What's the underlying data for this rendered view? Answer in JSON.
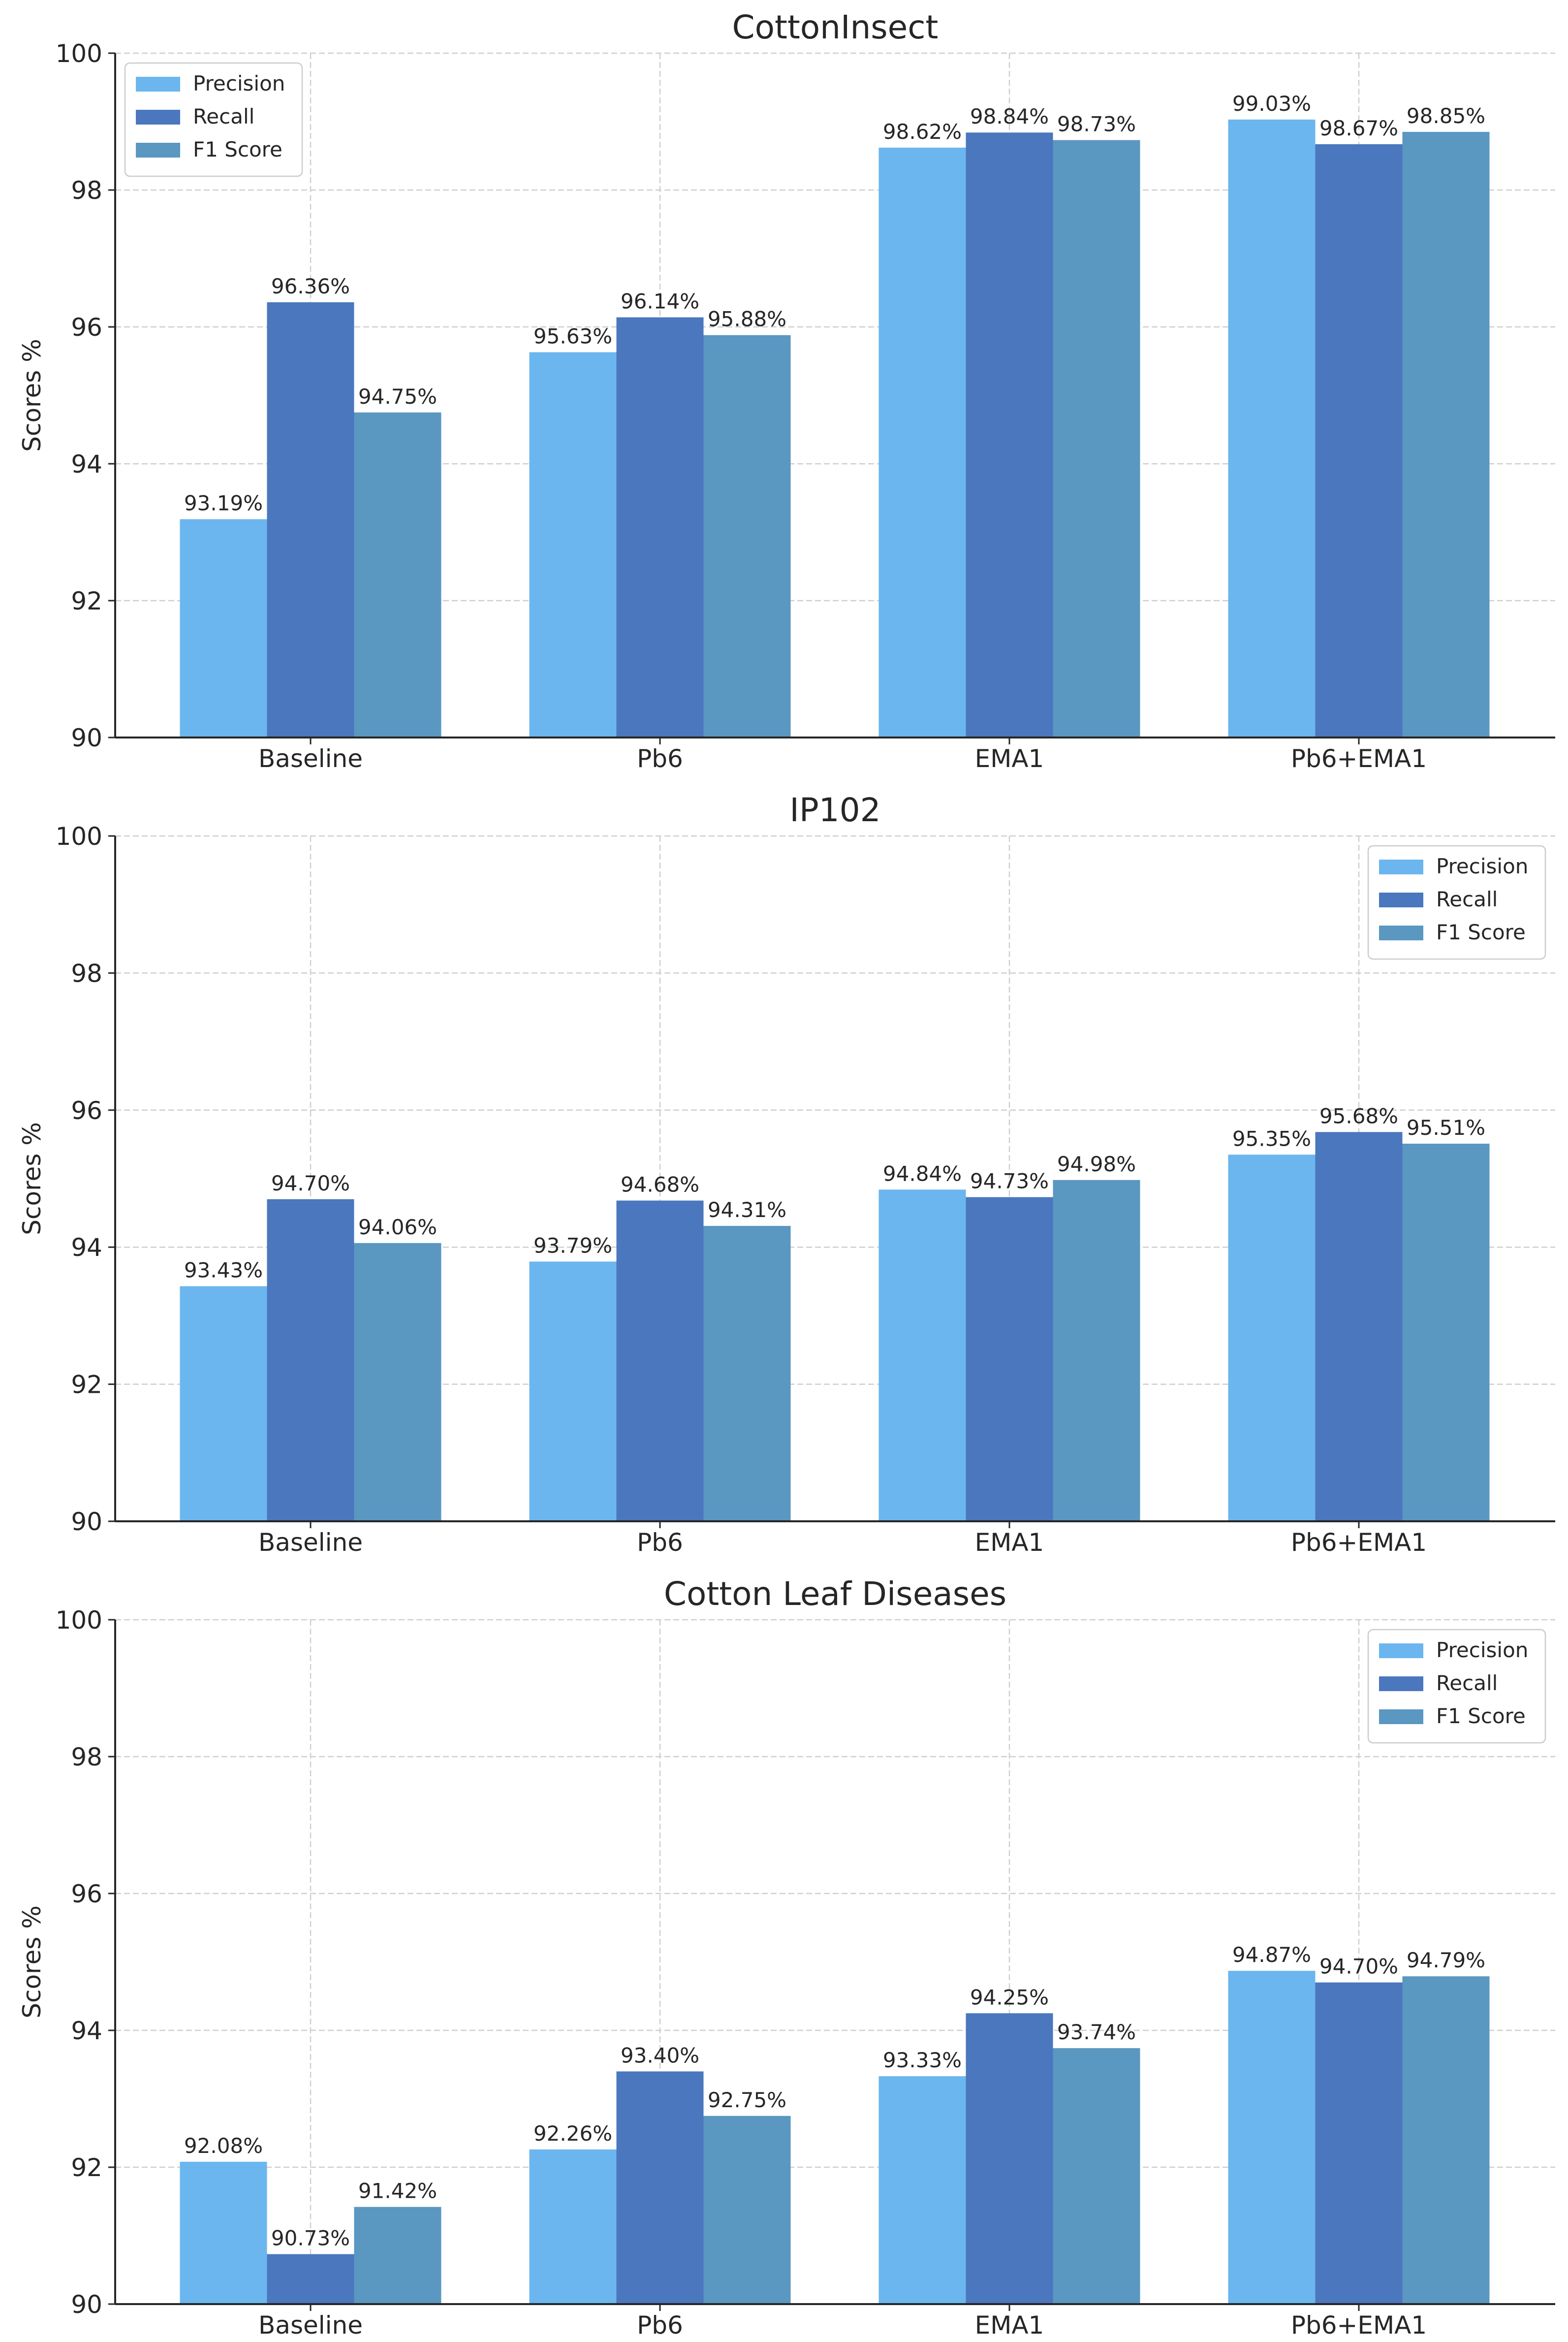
{
  "colors": {
    "precision": "#6BB6EF",
    "recall": "#4A77BE",
    "f1": "#5A97C1"
  },
  "chart_data": [
    {
      "type": "bar",
      "title": "CottonInsect",
      "xlabel": "",
      "ylabel": "Scores %",
      "ylim": [
        90,
        100
      ],
      "yticks": [
        "90",
        "92",
        "94",
        "96",
        "98",
        "100"
      ],
      "categories": [
        "Baseline",
        "Pb6",
        "EMA1",
        "Pb6+EMA1"
      ],
      "legend_position": "upper-left",
      "grid": true,
      "series": [
        {
          "name": "Precision",
          "values": [
            93.19,
            95.63,
            98.62,
            99.03
          ],
          "labels": [
            "93.19%",
            "95.63%",
            "98.62%",
            "99.03%"
          ]
        },
        {
          "name": "Recall",
          "values": [
            96.36,
            96.14,
            98.84,
            98.67
          ],
          "labels": [
            "96.36%",
            "96.14%",
            "98.84%",
            "98.67%"
          ]
        },
        {
          "name": "F1 Score",
          "values": [
            94.75,
            95.88,
            98.73,
            98.85
          ],
          "labels": [
            "94.75%",
            "95.88%",
            "98.73%",
            "98.85%"
          ]
        }
      ]
    },
    {
      "type": "bar",
      "title": "IP102",
      "xlabel": "",
      "ylabel": "Scores %",
      "ylim": [
        90,
        100
      ],
      "yticks": [
        "90",
        "92",
        "94",
        "96",
        "98",
        "100"
      ],
      "categories": [
        "Baseline",
        "Pb6",
        "EMA1",
        "Pb6+EMA1"
      ],
      "legend_position": "upper-right",
      "grid": true,
      "series": [
        {
          "name": "Precision",
          "values": [
            93.43,
            93.79,
            94.84,
            95.35
          ],
          "labels": [
            "93.43%",
            "93.79%",
            "94.84%",
            "95.35%"
          ]
        },
        {
          "name": "Recall",
          "values": [
            94.7,
            94.68,
            94.73,
            95.68
          ],
          "labels": [
            "94.70%",
            "94.68%",
            "94.73%",
            "95.68%"
          ]
        },
        {
          "name": "F1 Score",
          "values": [
            94.06,
            94.31,
            94.98,
            95.51
          ],
          "labels": [
            "94.06%",
            "94.31%",
            "94.98%",
            "95.51%"
          ]
        }
      ]
    },
    {
      "type": "bar",
      "title": "Cotton Leaf Diseases",
      "xlabel": "",
      "ylabel": "Scores %",
      "ylim": [
        90,
        100
      ],
      "yticks": [
        "90",
        "92",
        "94",
        "96",
        "98",
        "100"
      ],
      "categories": [
        "Baseline",
        "Pb6",
        "EMA1",
        "Pb6+EMA1"
      ],
      "legend_position": "upper-right",
      "grid": true,
      "series": [
        {
          "name": "Precision",
          "values": [
            92.08,
            92.26,
            93.33,
            94.87
          ],
          "labels": [
            "92.08%",
            "92.26%",
            "93.33%",
            "94.87%"
          ]
        },
        {
          "name": "Recall",
          "values": [
            90.73,
            93.4,
            94.25,
            94.7
          ],
          "labels": [
            "90.73%",
            "93.40%",
            "94.25%",
            "94.70%"
          ]
        },
        {
          "name": "F1 Score",
          "values": [
            91.42,
            92.75,
            93.74,
            94.79
          ],
          "labels": [
            "91.42%",
            "92.75%",
            "93.74%",
            "94.79%"
          ]
        }
      ]
    }
  ]
}
